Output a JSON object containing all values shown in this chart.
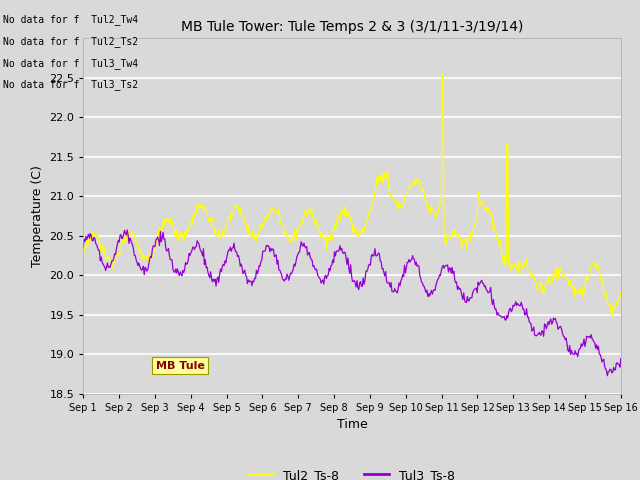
{
  "title": "MB Tule Tower: Tule Temps 2 & 3 (3/1/11-3/19/14)",
  "xlabel": "Time",
  "ylabel": "Temperature (C)",
  "ylim": [
    18.5,
    23.0
  ],
  "yticks": [
    18.5,
    19.0,
    19.5,
    20.0,
    20.5,
    21.0,
    21.5,
    22.0,
    22.5
  ],
  "xtick_labels": [
    "Sep 1",
    "Sep 2",
    "Sep 3",
    "Sep 4",
    "Sep 5",
    "Sep 6",
    "Sep 7",
    "Sep 8",
    "Sep 9",
    "Sep 10",
    "Sep 11",
    "Sep 12",
    "Sep 13",
    "Sep 14",
    "Sep 15",
    "Sep 16"
  ],
  "line1_color": "#ffff00",
  "line2_color": "#9400d3",
  "line1_label": "Tul2_Ts-8",
  "line2_label": "Tul3_Ts-8",
  "background_color": "#d9d9d9",
  "plot_bg_color": "#d9d9d9",
  "title_fontsize": 10,
  "no_data_text": [
    "No data for f  Tul2_Tw4",
    "No data for f  Tul2_Ts2",
    "No data for f  Tul3_Tw4",
    "No data for f  Tul3_Ts2"
  ],
  "tooltip_text": "MB Tule",
  "grid_color": "#ffffff",
  "legend_frame_color": "#ffff99",
  "figsize": [
    6.4,
    4.8
  ],
  "dpi": 100
}
